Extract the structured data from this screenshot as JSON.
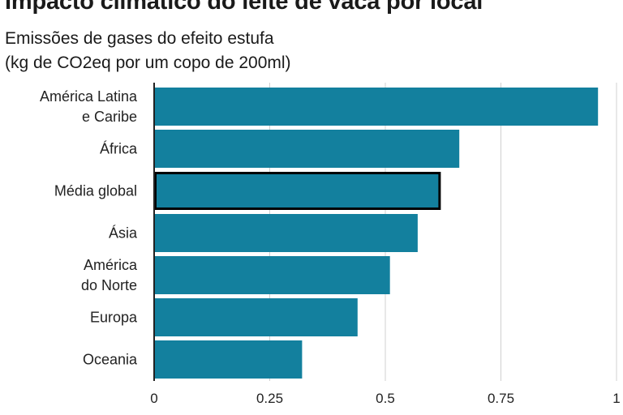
{
  "chart_data": {
    "type": "bar",
    "orientation": "horizontal",
    "title": "Impacto climático do leite de vaca por local",
    "subtitle_line1": "Emissões de gases do efeito estufa",
    "subtitle_line2": "(kg de CO2eq por um copo de 200ml)",
    "categories": [
      [
        "América Latina",
        "e Caribe"
      ],
      [
        "África"
      ],
      [
        "Média global"
      ],
      [
        "Ásia"
      ],
      [
        "América",
        "do Norte"
      ],
      [
        "Europa"
      ],
      [
        "Oceania"
      ]
    ],
    "values": [
      0.96,
      0.66,
      0.62,
      0.57,
      0.51,
      0.44,
      0.32
    ],
    "highlighted_category_index": 2,
    "xlim": [
      0,
      1
    ],
    "xticks": [
      0,
      0.25,
      0.5,
      0.75,
      1
    ],
    "xtick_labels": [
      "0",
      "0.25",
      "0.5",
      "0.75",
      "1"
    ],
    "grid": true,
    "bar_color": "#13809e",
    "highlight_border_color": "#000000",
    "grid_color": "#d0d0d0",
    "axis_color": "#222222"
  }
}
